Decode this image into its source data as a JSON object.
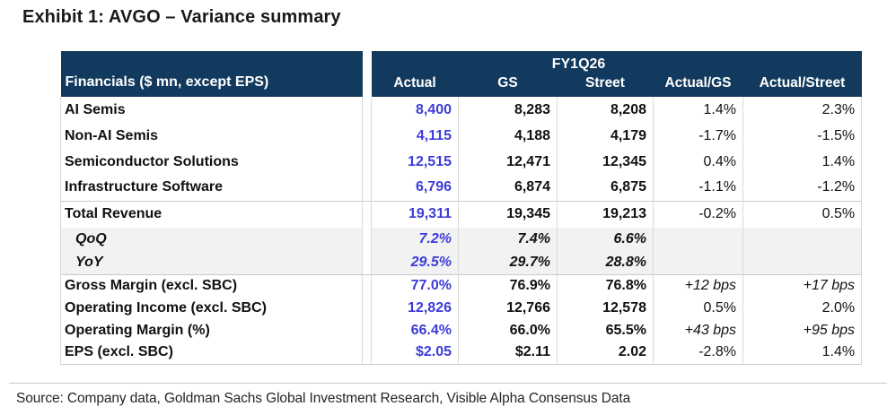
{
  "title": "Exhibit 1: AVGO – Variance summary",
  "table": {
    "label_header": "Financials ($ mn, except EPS)",
    "group_header": "FY1Q26",
    "columns": [
      "Actual",
      "GS",
      "Street",
      "Actual/GS",
      "Actual/Street"
    ],
    "rows": [
      {
        "label": "AI Semis",
        "section": "seg",
        "values": [
          "8,400",
          "8,283",
          "8,208",
          "1.4%",
          "2.3%"
        ]
      },
      {
        "label": "Non-AI Semis",
        "section": "seg",
        "values": [
          "4,115",
          "4,188",
          "4,179",
          "-1.7%",
          "-1.5%"
        ]
      },
      {
        "label": "Semiconductor Solutions",
        "section": "seg",
        "values": [
          "12,515",
          "12,471",
          "12,345",
          "0.4%",
          "1.4%"
        ]
      },
      {
        "label": "Infrastructure Software",
        "section": "seg",
        "values": [
          "6,796",
          "6,874",
          "6,875",
          "-1.1%",
          "-1.2%"
        ]
      },
      {
        "label": "Total Revenue",
        "section": "total",
        "values": [
          "19,311",
          "19,345",
          "19,213",
          "-0.2%",
          "0.5%"
        ]
      },
      {
        "label": "QoQ",
        "section": "sub",
        "values": [
          "7.2%",
          "7.4%",
          "6.6%",
          "",
          ""
        ]
      },
      {
        "label": "YoY",
        "section": "sub",
        "values": [
          "29.5%",
          "29.7%",
          "28.8%",
          "",
          ""
        ]
      },
      {
        "label": "Gross Margin (excl. SBC)",
        "section": "metric",
        "first_metric": true,
        "italic_vs": true,
        "values": [
          "77.0%",
          "76.9%",
          "76.8%",
          "+12 bps",
          "+17 bps"
        ]
      },
      {
        "label": "Operating Income (excl. SBC)",
        "section": "metric",
        "values": [
          "12,826",
          "12,766",
          "12,578",
          "0.5%",
          "2.0%"
        ]
      },
      {
        "label": "Operating Margin (%)",
        "section": "metric",
        "italic_vs": true,
        "values": [
          "66.4%",
          "66.0%",
          "65.5%",
          "+43 bps",
          "+95 bps"
        ]
      },
      {
        "label": "EPS (excl. SBC)",
        "section": "metric",
        "last": true,
        "values": [
          "$2.05",
          "$2.11",
          "2.02",
          "-2.8%",
          "1.4%"
        ]
      }
    ]
  },
  "source": "Source: Company data, Goldman Sachs Global Investment Research, Visible Alpha Consensus Data",
  "colors": {
    "header_bg": "#123a5e",
    "header_text": "#ffffff",
    "actual_value": "#3c3cd9",
    "band_bg": "#f2f2f2",
    "grid_line": "#d9d9d9",
    "section_line": "#c9c9c9",
    "title_text": "#1a1a1a"
  }
}
